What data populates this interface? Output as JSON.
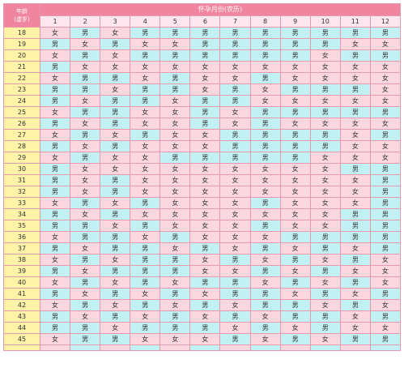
{
  "header": {
    "corner_line1": "年龄",
    "corner_line2": "(虚岁)",
    "title": "怀孕月份(农历)",
    "months": [
      "1",
      "2",
      "3",
      "4",
      "5",
      "6",
      "7",
      "8",
      "9",
      "10",
      "11",
      "12"
    ]
  },
  "colors": {
    "header": "#f0859f",
    "month_row": "#fde6ee",
    "age_col": "#fff3a8",
    "boy": "#c2f1f3",
    "girl": "#fdd7df",
    "border": "#e79aae"
  },
  "rows": [
    {
      "age": "18",
      "cells": [
        "女",
        "男",
        "女",
        "男",
        "男",
        "男",
        "男",
        "男",
        "男",
        "男",
        "男",
        "男"
      ]
    },
    {
      "age": "19",
      "cells": [
        "男",
        "女",
        "男",
        "女",
        "女",
        "男",
        "男",
        "男",
        "男",
        "男",
        "女",
        "女"
      ]
    },
    {
      "age": "20",
      "cells": [
        "女",
        "男",
        "女",
        "男",
        "男",
        "男",
        "男",
        "男",
        "男",
        "女",
        "男",
        "男"
      ]
    },
    {
      "age": "21",
      "cells": [
        "男",
        "女",
        "女",
        "女",
        "女",
        "女",
        "女",
        "女",
        "女",
        "女",
        "女",
        "女"
      ]
    },
    {
      "age": "22",
      "cells": [
        "女",
        "男",
        "男",
        "女",
        "男",
        "女",
        "女",
        "男",
        "女",
        "女",
        "女",
        "女"
      ]
    },
    {
      "age": "23",
      "cells": [
        "男",
        "男",
        "女",
        "男",
        "男",
        "女",
        "男",
        "女",
        "男",
        "男",
        "男",
        "女"
      ]
    },
    {
      "age": "24",
      "cells": [
        "男",
        "女",
        "男",
        "男",
        "女",
        "男",
        "男",
        "女",
        "女",
        "女",
        "女",
        "女"
      ]
    },
    {
      "age": "25",
      "cells": [
        "女",
        "男",
        "男",
        "女",
        "女",
        "男",
        "女",
        "男",
        "男",
        "男",
        "男",
        "男"
      ]
    },
    {
      "age": "26",
      "cells": [
        "男",
        "女",
        "男",
        "女",
        "女",
        "男",
        "女",
        "男",
        "女",
        "女",
        "女",
        "女"
      ]
    },
    {
      "age": "27",
      "cells": [
        "女",
        "男",
        "女",
        "男",
        "女",
        "女",
        "男",
        "男",
        "男",
        "男",
        "女",
        "男"
      ]
    },
    {
      "age": "28",
      "cells": [
        "男",
        "女",
        "男",
        "女",
        "女",
        "女",
        "男",
        "男",
        "男",
        "男",
        "女",
        "女"
      ]
    },
    {
      "age": "29",
      "cells": [
        "女",
        "男",
        "女",
        "女",
        "男",
        "男",
        "男",
        "男",
        "男",
        "女",
        "女",
        "女"
      ]
    },
    {
      "age": "30",
      "cells": [
        "男",
        "女",
        "女",
        "女",
        "女",
        "女",
        "女",
        "女",
        "女",
        "女",
        "男",
        "男"
      ]
    },
    {
      "age": "31",
      "cells": [
        "男",
        "女",
        "男",
        "女",
        "女",
        "女",
        "女",
        "女",
        "女",
        "女",
        "女",
        "男"
      ]
    },
    {
      "age": "32",
      "cells": [
        "男",
        "女",
        "男",
        "女",
        "女",
        "女",
        "女",
        "女",
        "女",
        "女",
        "女",
        "男"
      ]
    },
    {
      "age": "33",
      "cells": [
        "女",
        "男",
        "女",
        "男",
        "女",
        "女",
        "女",
        "男",
        "女",
        "女",
        "女",
        "男"
      ]
    },
    {
      "age": "34",
      "cells": [
        "男",
        "女",
        "男",
        "女",
        "女",
        "女",
        "女",
        "女",
        "女",
        "女",
        "男",
        "男"
      ]
    },
    {
      "age": "35",
      "cells": [
        "男",
        "男",
        "女",
        "男",
        "女",
        "女",
        "女",
        "男",
        "女",
        "女",
        "男",
        "男"
      ]
    },
    {
      "age": "36",
      "cells": [
        "女",
        "男",
        "男",
        "女",
        "男",
        "女",
        "女",
        "女",
        "男",
        "男",
        "男",
        "男"
      ]
    },
    {
      "age": "37",
      "cells": [
        "男",
        "女",
        "男",
        "男",
        "女",
        "男",
        "女",
        "男",
        "女",
        "男",
        "女",
        "男"
      ]
    },
    {
      "age": "38",
      "cells": [
        "女",
        "男",
        "女",
        "男",
        "男",
        "女",
        "男",
        "女",
        "男",
        "女",
        "男",
        "女"
      ]
    },
    {
      "age": "39",
      "cells": [
        "男",
        "女",
        "男",
        "男",
        "男",
        "女",
        "女",
        "男",
        "女",
        "男",
        "女",
        "女"
      ]
    },
    {
      "age": "40",
      "cells": [
        "女",
        "男",
        "女",
        "男",
        "女",
        "男",
        "男",
        "女",
        "男",
        "女",
        "男",
        "女"
      ]
    },
    {
      "age": "41",
      "cells": [
        "男",
        "女",
        "男",
        "女",
        "男",
        "女",
        "男",
        "男",
        "女",
        "男",
        "女",
        "男"
      ]
    },
    {
      "age": "42",
      "cells": [
        "女",
        "男",
        "女",
        "男",
        "女",
        "男",
        "女",
        "男",
        "男",
        "女",
        "男",
        "女"
      ]
    },
    {
      "age": "43",
      "cells": [
        "男",
        "女",
        "男",
        "女",
        "男",
        "女",
        "男",
        "女",
        "男",
        "男",
        "女",
        "男"
      ]
    },
    {
      "age": "44",
      "cells": [
        "男",
        "男",
        "女",
        "男",
        "男",
        "男",
        "女",
        "男",
        "女",
        "男",
        "女",
        "女"
      ]
    },
    {
      "age": "45",
      "cells": [
        "女",
        "男",
        "男",
        "女",
        "女",
        "女",
        "男",
        "女",
        "男",
        "女",
        "男",
        "男"
      ]
    }
  ]
}
